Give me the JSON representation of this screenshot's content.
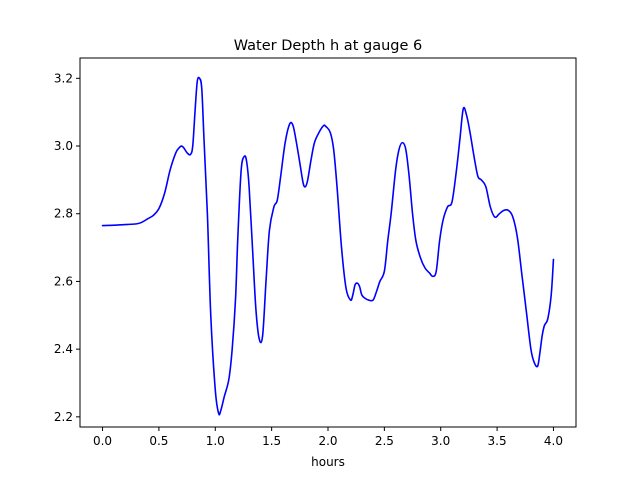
{
  "chart_data": {
    "type": "line",
    "title": "Water Depth h at gauge 6",
    "xlabel": "hours",
    "ylabel": "",
    "xlim": [
      -0.2,
      4.2
    ],
    "ylim": [
      2.17,
      3.26
    ],
    "xticks": [
      0.0,
      0.5,
      1.0,
      1.5,
      2.0,
      2.5,
      3.0,
      3.5,
      4.0
    ],
    "xtick_labels": [
      "0.0",
      "0.5",
      "1.0",
      "1.5",
      "2.0",
      "2.5",
      "3.0",
      "3.5",
      "4.0"
    ],
    "yticks": [
      2.2,
      2.4,
      2.6,
      2.8,
      3.0,
      3.2
    ],
    "ytick_labels": [
      "2.2",
      "2.4",
      "2.6",
      "2.8",
      "3.0",
      "3.2"
    ],
    "grid": false,
    "line_color": "#0000ff",
    "series": [
      {
        "x": [
          0.0,
          0.1,
          0.2,
          0.3,
          0.35,
          0.4,
          0.45,
          0.5,
          0.55,
          0.6,
          0.65,
          0.68,
          0.7,
          0.72,
          0.75,
          0.78,
          0.8,
          0.82,
          0.84,
          0.86,
          0.88,
          0.9,
          0.93,
          0.96,
          1.0,
          1.03,
          1.05,
          1.08,
          1.12,
          1.15,
          1.18,
          1.2,
          1.23,
          1.26,
          1.28,
          1.3,
          1.33,
          1.36,
          1.39,
          1.42,
          1.45,
          1.48,
          1.52,
          1.55,
          1.58,
          1.62,
          1.66,
          1.69,
          1.72,
          1.75,
          1.78,
          1.8,
          1.82,
          1.85,
          1.88,
          1.92,
          1.96,
          1.98,
          2.02,
          2.05,
          2.08,
          2.12,
          2.16,
          2.2,
          2.22,
          2.24,
          2.26,
          2.28,
          2.3,
          2.33,
          2.36,
          2.4,
          2.43,
          2.46,
          2.5,
          2.53,
          2.56,
          2.6,
          2.63,
          2.66,
          2.69,
          2.72,
          2.75,
          2.78,
          2.82,
          2.86,
          2.9,
          2.93,
          2.96,
          2.99,
          3.02,
          3.06,
          3.1,
          3.14,
          3.17,
          3.2,
          3.23,
          3.26,
          3.3,
          3.33,
          3.36,
          3.4,
          3.44,
          3.48,
          3.52,
          3.56,
          3.6,
          3.64,
          3.68,
          3.72,
          3.76,
          3.8,
          3.83,
          3.86,
          3.88,
          3.9,
          3.92,
          3.95,
          3.98,
          4.0
        ],
        "y": [
          2.765,
          2.766,
          2.768,
          2.77,
          2.775,
          2.785,
          2.795,
          2.815,
          2.86,
          2.93,
          2.98,
          2.995,
          3.0,
          2.995,
          2.98,
          2.975,
          3.0,
          3.1,
          3.19,
          3.2,
          3.17,
          3.02,
          2.8,
          2.5,
          2.28,
          2.21,
          2.22,
          2.26,
          2.31,
          2.4,
          2.55,
          2.73,
          2.93,
          2.97,
          2.95,
          2.88,
          2.7,
          2.52,
          2.43,
          2.44,
          2.6,
          2.75,
          2.82,
          2.84,
          2.91,
          3.01,
          3.065,
          3.06,
          3.01,
          2.95,
          2.89,
          2.88,
          2.9,
          2.96,
          3.01,
          3.04,
          3.06,
          3.058,
          3.04,
          2.99,
          2.88,
          2.7,
          2.58,
          2.545,
          2.56,
          2.59,
          2.595,
          2.585,
          2.56,
          2.55,
          2.545,
          2.545,
          2.57,
          2.6,
          2.63,
          2.72,
          2.8,
          2.93,
          2.99,
          3.01,
          2.99,
          2.91,
          2.8,
          2.72,
          2.67,
          2.64,
          2.625,
          2.615,
          2.63,
          2.72,
          2.78,
          2.82,
          2.835,
          2.93,
          3.02,
          3.11,
          3.09,
          3.04,
          2.96,
          2.91,
          2.9,
          2.88,
          2.82,
          2.79,
          2.8,
          2.81,
          2.81,
          2.79,
          2.73,
          2.62,
          2.51,
          2.4,
          2.36,
          2.35,
          2.39,
          2.44,
          2.47,
          2.49,
          2.56,
          2.665
        ]
      }
    ]
  }
}
